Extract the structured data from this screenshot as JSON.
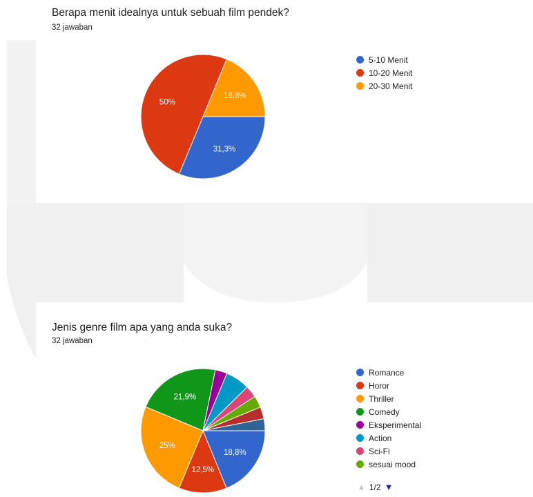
{
  "questions": [
    {
      "title": "Berapa menit idealnya untuk sebuah film pendek?",
      "responses": "32 jawaban"
    },
    {
      "title": "Jenis genre film apa yang anda suka?",
      "responses": "32 jawaban"
    }
  ],
  "pager": {
    "text": "1/2",
    "up_icon": "triangle-up-icon",
    "down_icon": "triangle-down-icon"
  },
  "chart_data": [
    {
      "type": "pie",
      "title": "Berapa menit idealnya untuk sebuah film pendek?",
      "categories": [
        "5-10 Menit",
        "10-20 Menit",
        "20-30 Menit"
      ],
      "values": [
        31.3,
        50,
        18.8
      ],
      "labels": [
        "31,3%",
        "50%",
        "18,8%"
      ],
      "colors": [
        "#3366cc",
        "#dc3912",
        "#ff9900"
      ],
      "legend": "right"
    },
    {
      "type": "pie",
      "title": "Jenis genre film apa yang anda suka?",
      "categories": [
        "Romance",
        "Horor",
        "Thriller",
        "Comedy",
        "Eksperimental",
        "Action",
        "Sci-Fi",
        "sesuai mood",
        "",
        "",
        ""
      ],
      "values": [
        18.8,
        12.5,
        25,
        21.9,
        3.1,
        6.3,
        3.1,
        3.1,
        3.1,
        3.1,
        0
      ],
      "labels": [
        "18,8%",
        "12,5%",
        "25%",
        "21,9%",
        "",
        "",
        "",
        "",
        "",
        "",
        ""
      ],
      "colors": [
        "#3366cc",
        "#dc3912",
        "#ff9900",
        "#109618",
        "#990099",
        "#0099c6",
        "#dd4477",
        "#66aa00",
        "#b82e2e",
        "#316395",
        "#994499"
      ],
      "legend_visible_count": 8,
      "legend": "right"
    }
  ]
}
